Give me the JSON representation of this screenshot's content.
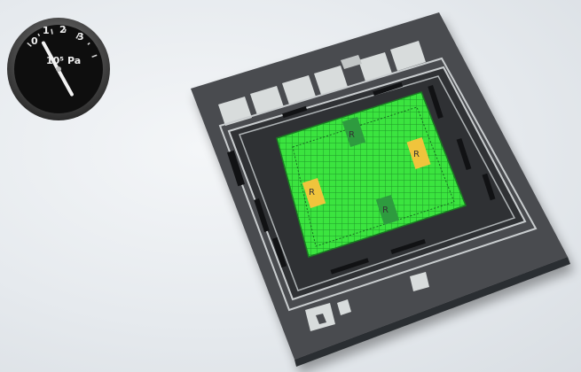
{
  "gauge": {
    "ticks": [
      "0",
      "1",
      "2",
      "3"
    ],
    "unit_label": "10⁵ Pa",
    "needle_value": 0.5,
    "scale_max": 3
  },
  "chip": {
    "resistors": [
      {
        "label": "R",
        "color": "#2e9b3f"
      },
      {
        "label": "R",
        "color": "#f0c43c"
      },
      {
        "label": "R",
        "color": "#f0c43c"
      },
      {
        "label": "R",
        "color": "#2e9b3f"
      }
    ],
    "colors": {
      "substrate": "#4a4c50",
      "membrane": "#35e23a",
      "frame": "#2e3033",
      "pad": "#d8dcdc",
      "trace": "#c9cdcf"
    }
  }
}
